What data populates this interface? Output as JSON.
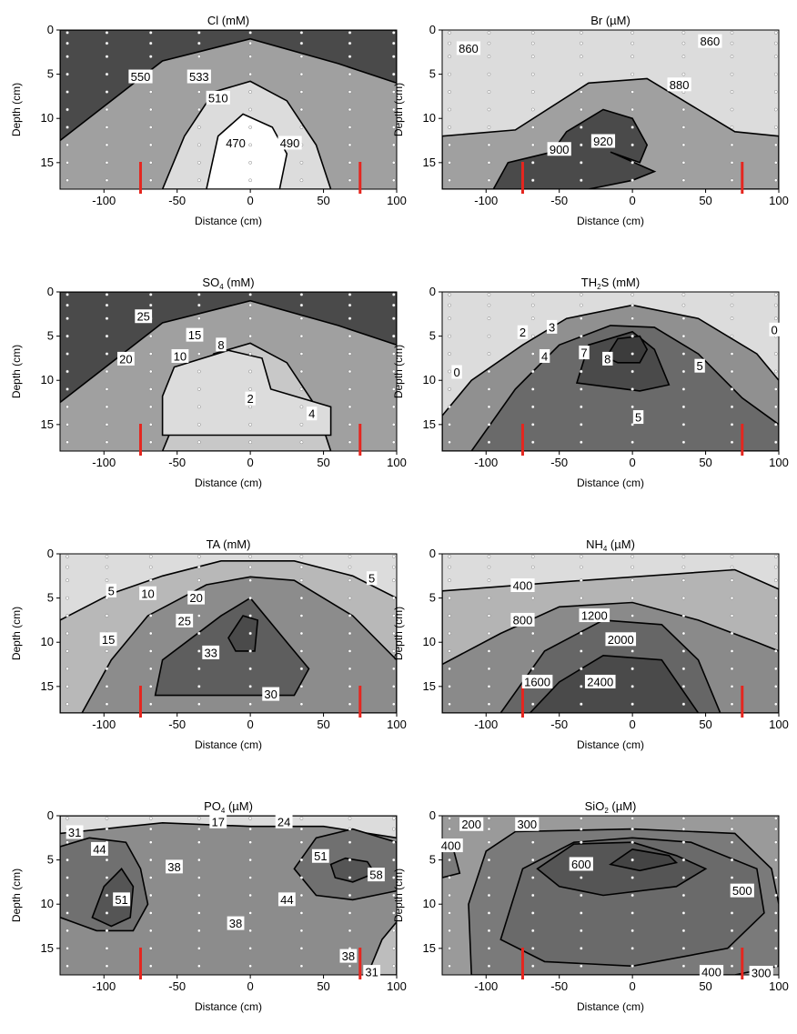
{
  "figure": {
    "axes": {
      "xlabel": "Distance (cm)",
      "ylabel": "Depth (cm)",
      "xlim": [
        -130,
        100
      ],
      "ylim": [
        0,
        18
      ],
      "x_ticks": [
        -100,
        -50,
        0,
        50,
        100
      ],
      "y_ticks": [
        0,
        5,
        10,
        15
      ]
    },
    "marker_x": [
      -75,
      75
    ],
    "colors": {
      "light": "#dcdcdc",
      "mid": "#a0a0a0",
      "dark": "#4a4a4a",
      "marker": "#e5261f"
    }
  },
  "chart_data": [
    {
      "type": "contour",
      "title": {
        "main": "Cl",
        "sub": "",
        "tail": " (mM)"
      },
      "levels": [
        "550",
        "533",
        "510",
        "470",
        "490"
      ],
      "contour_labels": [
        {
          "text": "550",
          "x": -75,
          "y": 5.3
        },
        {
          "text": "533",
          "x": -35,
          "y": 5.3
        },
        {
          "text": "510",
          "x": -22,
          "y": 7.7
        },
        {
          "text": "470",
          "x": -10,
          "y": 12.8
        },
        {
          "text": "490",
          "x": 27,
          "y": 12.8
        }
      ]
    },
    {
      "type": "contour",
      "title": {
        "main": "Br",
        "sub": "",
        "tail": " (µM)"
      },
      "levels": [
        "860",
        "880",
        "900",
        "920"
      ],
      "contour_labels": [
        {
          "text": "860",
          "x": -112,
          "y": 2.1
        },
        {
          "text": "860",
          "x": 53,
          "y": 1.3
        },
        {
          "text": "880",
          "x": 32,
          "y": 6.2
        },
        {
          "text": "900",
          "x": -50,
          "y": 13.5
        },
        {
          "text": "920",
          "x": -20,
          "y": 12.6
        }
      ]
    },
    {
      "type": "contour",
      "title": {
        "main": "SO",
        "sub": "4",
        "tail": " (mM)"
      },
      "levels": [
        "25",
        "20",
        "15",
        "10",
        "8",
        "4",
        "2"
      ],
      "contour_labels": [
        {
          "text": "25",
          "x": -73,
          "y": 2.8
        },
        {
          "text": "20",
          "x": -85,
          "y": 7.6
        },
        {
          "text": "15",
          "x": -38,
          "y": 4.9
        },
        {
          "text": "10",
          "x": -48,
          "y": 7.3
        },
        {
          "text": "8",
          "x": -20,
          "y": 6.0
        },
        {
          "text": "2",
          "x": 0,
          "y": 12.1
        },
        {
          "text": "4",
          "x": 42,
          "y": 13.8
        }
      ]
    },
    {
      "type": "contour",
      "title": {
        "main": "TH",
        "sub": "2",
        "tail": "S (mM)"
      },
      "levels": [
        "0",
        "2",
        "3",
        "4",
        "5",
        "7",
        "8"
      ],
      "contour_labels": [
        {
          "text": "0",
          "x": -120,
          "y": 9.1
        },
        {
          "text": "2",
          "x": -75,
          "y": 4.6
        },
        {
          "text": "3",
          "x": -55,
          "y": 4.0
        },
        {
          "text": "4",
          "x": -60,
          "y": 7.3
        },
        {
          "text": "7",
          "x": -33,
          "y": 6.9
        },
        {
          "text": "8",
          "x": -17,
          "y": 7.6
        },
        {
          "text": "5",
          "x": 46,
          "y": 8.4
        },
        {
          "text": "5",
          "x": 4,
          "y": 14.2
        },
        {
          "text": "0",
          "x": 97,
          "y": 4.3
        }
      ]
    },
    {
      "type": "contour",
      "title": {
        "main": "TA",
        "sub": "",
        "tail": " (mM)"
      },
      "levels": [
        "5",
        "10",
        "15",
        "20",
        "25",
        "30",
        "33"
      ],
      "contour_labels": [
        {
          "text": "5",
          "x": -95,
          "y": 4.2
        },
        {
          "text": "5",
          "x": 83,
          "y": 2.8
        },
        {
          "text": "10",
          "x": -70,
          "y": 4.5
        },
        {
          "text": "20",
          "x": -37,
          "y": 5.0
        },
        {
          "text": "25",
          "x": -45,
          "y": 7.6
        },
        {
          "text": "15",
          "x": -97,
          "y": 9.7
        },
        {
          "text": "33",
          "x": -27,
          "y": 11.2
        },
        {
          "text": "30",
          "x": 14,
          "y": 15.9
        }
      ]
    },
    {
      "type": "contour",
      "title": {
        "main": "NH",
        "sub": "4",
        "tail": " (µM)"
      },
      "levels": [
        "400",
        "800",
        "1200",
        "1600",
        "2000",
        "2400"
      ],
      "contour_labels": [
        {
          "text": "400",
          "x": -75,
          "y": 3.6
        },
        {
          "text": "800",
          "x": -75,
          "y": 7.5
        },
        {
          "text": "1200",
          "x": -26,
          "y": 7.0
        },
        {
          "text": "2000",
          "x": -8,
          "y": 9.7
        },
        {
          "text": "1600",
          "x": -65,
          "y": 14.5
        },
        {
          "text": "2400",
          "x": -22,
          "y": 14.5
        }
      ]
    },
    {
      "type": "contour",
      "title": {
        "main": "PO",
        "sub": "4",
        "tail": " (µM)"
      },
      "levels": [
        "17",
        "24",
        "31",
        "38",
        "44",
        "51",
        "58"
      ],
      "contour_labels": [
        {
          "text": "31",
          "x": -120,
          "y": 1.9
        },
        {
          "text": "17",
          "x": -22,
          "y": 0.7
        },
        {
          "text": "24",
          "x": 23,
          "y": 0.7
        },
        {
          "text": "44",
          "x": -103,
          "y": 3.8
        },
        {
          "text": "38",
          "x": -52,
          "y": 5.8
        },
        {
          "text": "51",
          "x": 48,
          "y": 4.6
        },
        {
          "text": "58",
          "x": 86,
          "y": 6.7
        },
        {
          "text": "51",
          "x": -88,
          "y": 9.5
        },
        {
          "text": "44",
          "x": 25,
          "y": 9.5
        },
        {
          "text": "38",
          "x": -10,
          "y": 12.2
        },
        {
          "text": "38",
          "x": 67,
          "y": 15.9
        },
        {
          "text": "31",
          "x": 83,
          "y": 17.7
        }
      ]
    },
    {
      "type": "contour",
      "title": {
        "main": "SiO",
        "sub": "2",
        "tail": " (µM)"
      },
      "levels": [
        "200",
        "300",
        "400",
        "500",
        "600"
      ],
      "contour_labels": [
        {
          "text": "200",
          "x": -110,
          "y": 1.0
        },
        {
          "text": "300",
          "x": -72,
          "y": 1.0
        },
        {
          "text": "400",
          "x": -124,
          "y": 3.4
        },
        {
          "text": "600",
          "x": -35,
          "y": 5.5
        },
        {
          "text": "500",
          "x": 75,
          "y": 8.5
        },
        {
          "text": "400",
          "x": 54,
          "y": 17.7
        },
        {
          "text": "300",
          "x": 88,
          "y": 17.8
        }
      ]
    }
  ]
}
